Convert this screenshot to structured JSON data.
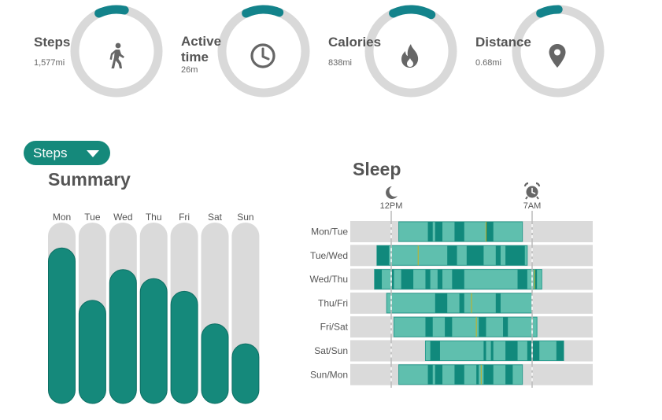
{
  "stats": [
    {
      "label": "Steps",
      "value": "1,577mi",
      "icon": "walking-person-icon",
      "fraction": 0.1
    },
    {
      "label": "Active\ntime",
      "value": "26m",
      "icon": "clock-icon",
      "fraction": 0.13
    },
    {
      "label": "Calories",
      "value": "838mi",
      "icon": "flame-icon",
      "fraction": 0.15
    },
    {
      "label": "Distance",
      "value": "0.68mi",
      "icon": "location-pin-icon",
      "fraction": 0.07
    }
  ],
  "colors": {
    "accent": "#15897b",
    "ring_track": "#d9d9d9",
    "ring_fill": "#13838b",
    "bar_track": "#dadada",
    "sleep_light": "#5fbfae",
    "sleep_deep": "#11897c",
    "sleep_track": "#dadada",
    "sleep_marker": "#c9b020"
  },
  "metric_select": {
    "selected": "Steps"
  },
  "summary": {
    "title": "Summary"
  },
  "sleep": {
    "title": "Sleep",
    "start_label": "12PM",
    "end_label": "7AM"
  },
  "chart_data": [
    {
      "type": "bar",
      "title": "Summary",
      "categories": [
        "Mon",
        "Tue",
        "Wed",
        "Thu",
        "Fri",
        "Sat",
        "Sun"
      ],
      "values": [
        0.86,
        0.57,
        0.74,
        0.69,
        0.62,
        0.44,
        0.33
      ],
      "ylim": [
        0,
        1
      ]
    },
    {
      "type": "sleep-timeline",
      "title": "Sleep",
      "marker_labels": [
        "12PM",
        "7AM"
      ],
      "rows": [
        {
          "night": "Mon/Tue",
          "start": 0.2,
          "end": 0.71,
          "deep": [
            [
              0.32,
              0.34
            ],
            [
              0.35,
              0.38
            ],
            [
              0.43,
              0.47
            ],
            [
              0.56,
              0.59
            ]
          ],
          "markers": [
            0.56
          ]
        },
        {
          "night": "Tue/Wed",
          "start": 0.11,
          "end": 0.73,
          "deep": [
            [
              0.11,
              0.16
            ],
            [
              0.4,
              0.44
            ],
            [
              0.48,
              0.55
            ],
            [
              0.6,
              0.62
            ],
            [
              0.64,
              0.72
            ]
          ],
          "markers": [
            0.28
          ]
        },
        {
          "night": "Wed/Thu",
          "start": 0.1,
          "end": 0.79,
          "deep": [
            [
              0.1,
              0.13
            ],
            [
              0.17,
              0.18
            ],
            [
              0.21,
              0.26
            ],
            [
              0.31,
              0.33
            ],
            [
              0.36,
              0.38
            ],
            [
              0.42,
              0.47
            ],
            [
              0.69,
              0.73
            ],
            [
              0.76,
              0.77
            ]
          ],
          "markers": [
            0.76
          ]
        },
        {
          "night": "Thu/Fri",
          "start": 0.15,
          "end": 0.75,
          "deep": [
            [
              0.35,
              0.4
            ],
            [
              0.45,
              0.47
            ],
            [
              0.6,
              0.62
            ]
          ],
          "markers": [
            0.5
          ]
        },
        {
          "night": "Fri/Sat",
          "start": 0.18,
          "end": 0.77,
          "deep": [
            [
              0.31,
              0.34
            ],
            [
              0.39,
              0.42
            ],
            [
              0.53,
              0.56
            ],
            [
              0.63,
              0.65
            ]
          ],
          "markers": [
            0.52
          ]
        },
        {
          "night": "Sat/Sun",
          "start": 0.31,
          "end": 0.88,
          "deep": [
            [
              0.33,
              0.37
            ],
            [
              0.55,
              0.56
            ],
            [
              0.58,
              0.59
            ],
            [
              0.64,
              0.69
            ],
            [
              0.73,
              0.78
            ],
            [
              0.85,
              0.88
            ]
          ],
          "markers": []
        },
        {
          "night": "Sun/Mon",
          "start": 0.2,
          "end": 0.71,
          "deep": [
            [
              0.32,
              0.34
            ],
            [
              0.35,
              0.38
            ],
            [
              0.43,
              0.47
            ],
            [
              0.52,
              0.53
            ],
            [
              0.55,
              0.59
            ],
            [
              0.64,
              0.67
            ]
          ],
          "markers": [
            0.54
          ]
        }
      ]
    }
  ]
}
